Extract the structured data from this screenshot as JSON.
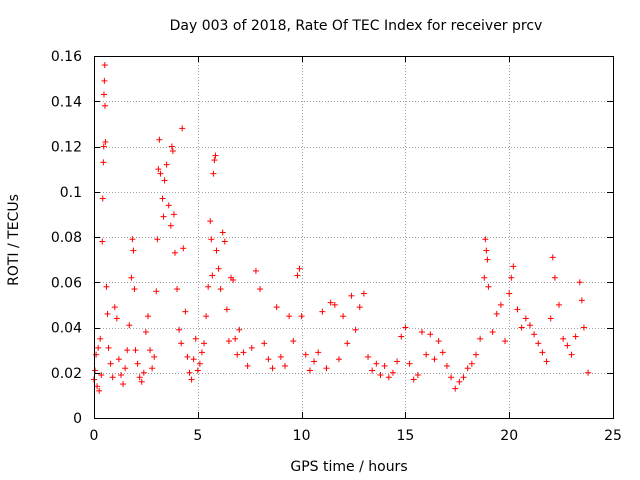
{
  "chart_data": {
    "type": "scatter",
    "title": "Day 003 of 2018, Rate Of TEC Index for receiver prcv",
    "xlabel": "GPS time / hours",
    "ylabel": "ROTI / TECUs",
    "xlim": [
      0,
      25
    ],
    "ylim": [
      0,
      0.16
    ],
    "x_ticks": [
      0,
      5,
      10,
      15,
      20,
      25
    ],
    "y_ticks": [
      0,
      0.02,
      0.04,
      0.06,
      0.08,
      0.1,
      0.12,
      0.14,
      0.16
    ],
    "x_tick_labels": [
      "0",
      "5",
      "10",
      "15",
      "20",
      "25"
    ],
    "y_tick_labels": [
      "0",
      "0.02",
      "0.04",
      "0.06",
      "0.08",
      "0.1",
      "0.12",
      "0.14",
      "0.16"
    ],
    "grid": true,
    "marker": "+",
    "marker_color": "#ff0000",
    "series": [
      {
        "name": "ROTI",
        "points": [
          [
            0.0,
            0.017
          ],
          [
            0.05,
            0.021
          ],
          [
            0.1,
            0.028
          ],
          [
            0.15,
            0.014
          ],
          [
            0.2,
            0.031
          ],
          [
            0.25,
            0.012
          ],
          [
            0.3,
            0.035
          ],
          [
            0.35,
            0.019
          ],
          [
            0.4,
            0.078
          ],
          [
            0.42,
            0.097
          ],
          [
            0.45,
            0.113
          ],
          [
            0.47,
            0.12
          ],
          [
            0.48,
            0.143
          ],
          [
            0.5,
            0.149
          ],
          [
            0.52,
            0.156
          ],
          [
            0.53,
            0.138
          ],
          [
            0.55,
            0.122
          ],
          [
            0.6,
            0.058
          ],
          [
            0.65,
            0.046
          ],
          [
            0.7,
            0.031
          ],
          [
            0.8,
            0.024
          ],
          [
            0.9,
            0.018
          ],
          [
            1.0,
            0.049
          ],
          [
            1.1,
            0.044
          ],
          [
            1.2,
            0.026
          ],
          [
            1.3,
            0.019
          ],
          [
            1.4,
            0.015
          ],
          [
            1.5,
            0.022
          ],
          [
            1.6,
            0.03
          ],
          [
            1.7,
            0.041
          ],
          [
            1.8,
            0.062
          ],
          [
            1.85,
            0.079
          ],
          [
            1.9,
            0.074
          ],
          [
            1.95,
            0.057
          ],
          [
            2.0,
            0.03
          ],
          [
            2.1,
            0.024
          ],
          [
            2.2,
            0.018
          ],
          [
            2.3,
            0.016
          ],
          [
            2.4,
            0.02
          ],
          [
            2.5,
            0.038
          ],
          [
            2.6,
            0.045
          ],
          [
            2.7,
            0.03
          ],
          [
            2.8,
            0.022
          ],
          [
            2.9,
            0.027
          ],
          [
            3.0,
            0.056
          ],
          [
            3.05,
            0.079
          ],
          [
            3.1,
            0.11
          ],
          [
            3.15,
            0.123
          ],
          [
            3.2,
            0.108
          ],
          [
            3.3,
            0.097
          ],
          [
            3.35,
            0.089
          ],
          [
            3.4,
            0.105
          ],
          [
            3.5,
            0.112
          ],
          [
            3.6,
            0.094
          ],
          [
            3.7,
            0.085
          ],
          [
            3.75,
            0.12
          ],
          [
            3.8,
            0.118
          ],
          [
            3.85,
            0.09
          ],
          [
            3.9,
            0.073
          ],
          [
            4.0,
            0.057
          ],
          [
            4.1,
            0.039
          ],
          [
            4.2,
            0.033
          ],
          [
            4.25,
            0.128
          ],
          [
            4.3,
            0.075
          ],
          [
            4.4,
            0.047
          ],
          [
            4.5,
            0.027
          ],
          [
            4.6,
            0.02
          ],
          [
            4.7,
            0.017
          ],
          [
            4.8,
            0.026
          ],
          [
            4.9,
            0.035
          ],
          [
            5.0,
            0.021
          ],
          [
            5.1,
            0.024
          ],
          [
            5.2,
            0.029
          ],
          [
            5.3,
            0.033
          ],
          [
            5.4,
            0.045
          ],
          [
            5.5,
            0.058
          ],
          [
            5.6,
            0.087
          ],
          [
            5.65,
            0.079
          ],
          [
            5.7,
            0.063
          ],
          [
            5.75,
            0.108
          ],
          [
            5.8,
            0.114
          ],
          [
            5.85,
            0.116
          ],
          [
            5.9,
            0.074
          ],
          [
            6.0,
            0.066
          ],
          [
            6.1,
            0.057
          ],
          [
            6.2,
            0.082
          ],
          [
            6.3,
            0.078
          ],
          [
            6.4,
            0.048
          ],
          [
            6.5,
            0.034
          ],
          [
            6.6,
            0.062
          ],
          [
            6.7,
            0.061
          ],
          [
            6.8,
            0.035
          ],
          [
            6.9,
            0.028
          ],
          [
            7.0,
            0.039
          ],
          [
            7.2,
            0.029
          ],
          [
            7.4,
            0.023
          ],
          [
            7.6,
            0.031
          ],
          [
            7.8,
            0.065
          ],
          [
            8.0,
            0.057
          ],
          [
            8.2,
            0.033
          ],
          [
            8.4,
            0.026
          ],
          [
            8.6,
            0.022
          ],
          [
            8.8,
            0.049
          ],
          [
            9.0,
            0.027
          ],
          [
            9.2,
            0.023
          ],
          [
            9.4,
            0.045
          ],
          [
            9.6,
            0.034
          ],
          [
            9.8,
            0.063
          ],
          [
            9.9,
            0.066
          ],
          [
            10.0,
            0.045
          ],
          [
            10.2,
            0.028
          ],
          [
            10.4,
            0.021
          ],
          [
            10.6,
            0.025
          ],
          [
            10.8,
            0.029
          ],
          [
            11.0,
            0.047
          ],
          [
            11.2,
            0.022
          ],
          [
            11.4,
            0.051
          ],
          [
            11.6,
            0.05
          ],
          [
            11.8,
            0.026
          ],
          [
            12.0,
            0.045
          ],
          [
            12.2,
            0.033
          ],
          [
            12.4,
            0.054
          ],
          [
            12.6,
            0.039
          ],
          [
            12.8,
            0.049
          ],
          [
            13.0,
            0.055
          ],
          [
            13.2,
            0.027
          ],
          [
            13.4,
            0.021
          ],
          [
            13.6,
            0.024
          ],
          [
            13.8,
            0.019
          ],
          [
            14.0,
            0.023
          ],
          [
            14.2,
            0.018
          ],
          [
            14.4,
            0.02
          ],
          [
            14.6,
            0.025
          ],
          [
            14.8,
            0.036
          ],
          [
            15.0,
            0.04
          ],
          [
            15.2,
            0.024
          ],
          [
            15.4,
            0.017
          ],
          [
            15.6,
            0.019
          ],
          [
            15.8,
            0.038
          ],
          [
            16.0,
            0.028
          ],
          [
            16.2,
            0.037
          ],
          [
            16.4,
            0.026
          ],
          [
            16.6,
            0.034
          ],
          [
            16.8,
            0.029
          ],
          [
            17.0,
            0.023
          ],
          [
            17.2,
            0.018
          ],
          [
            17.4,
            0.013
          ],
          [
            17.6,
            0.016
          ],
          [
            17.8,
            0.018
          ],
          [
            18.0,
            0.022
          ],
          [
            18.2,
            0.024
          ],
          [
            18.4,
            0.028
          ],
          [
            18.6,
            0.035
          ],
          [
            18.8,
            0.062
          ],
          [
            18.85,
            0.079
          ],
          [
            18.9,
            0.074
          ],
          [
            18.95,
            0.07
          ],
          [
            19.0,
            0.058
          ],
          [
            19.2,
            0.038
          ],
          [
            19.4,
            0.046
          ],
          [
            19.6,
            0.05
          ],
          [
            19.8,
            0.034
          ],
          [
            20.0,
            0.055
          ],
          [
            20.1,
            0.062
          ],
          [
            20.2,
            0.067
          ],
          [
            20.4,
            0.048
          ],
          [
            20.6,
            0.04
          ],
          [
            20.8,
            0.044
          ],
          [
            21.0,
            0.041
          ],
          [
            21.2,
            0.037
          ],
          [
            21.4,
            0.033
          ],
          [
            21.6,
            0.029
          ],
          [
            21.8,
            0.025
          ],
          [
            22.0,
            0.044
          ],
          [
            22.1,
            0.071
          ],
          [
            22.2,
            0.062
          ],
          [
            22.4,
            0.05
          ],
          [
            22.6,
            0.035
          ],
          [
            22.8,
            0.032
          ],
          [
            23.0,
            0.028
          ],
          [
            23.2,
            0.036
          ],
          [
            23.4,
            0.06
          ],
          [
            23.5,
            0.052
          ],
          [
            23.6,
            0.04
          ],
          [
            23.8,
            0.02
          ]
        ]
      }
    ]
  }
}
